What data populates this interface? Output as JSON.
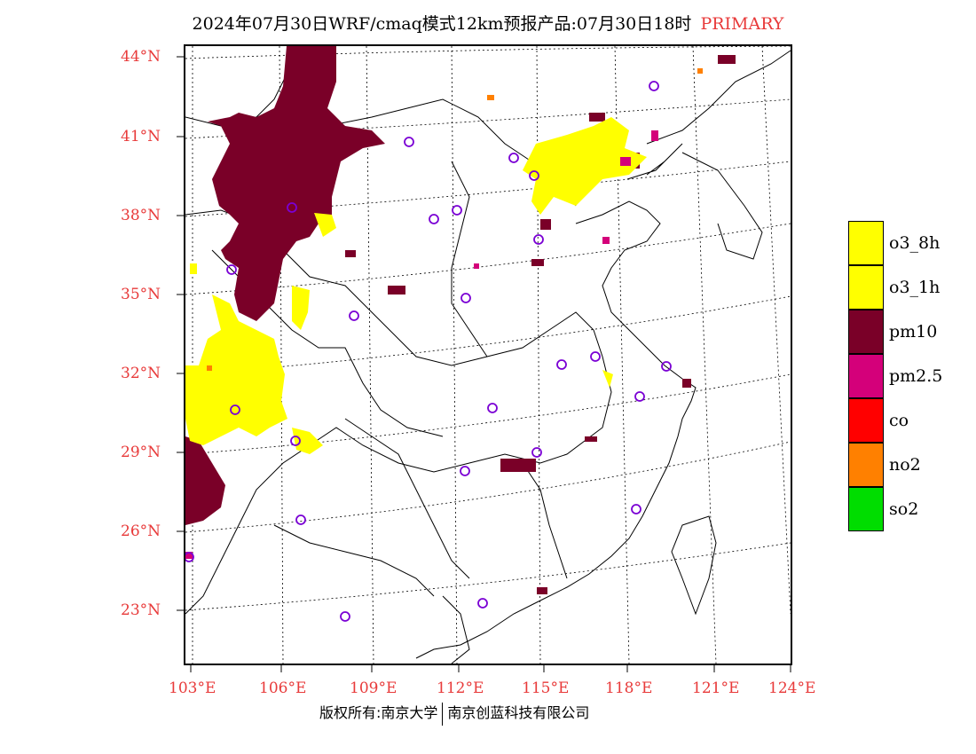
{
  "title": "2024年07月30日WRF/cmaq模式12km预报产品:07月30日18时",
  "title_tag": "PRIMARY",
  "lat_labels": [
    "44°N",
    "41°N",
    "38°N",
    "35°N",
    "32°N",
    "29°N",
    "26°N",
    "23°N"
  ],
  "lon_labels": [
    "103°E",
    "106°E",
    "109°E",
    "112°E",
    "115°E",
    "118°E",
    "121°E",
    "124°E"
  ],
  "legend": [
    {
      "label": "o3_8h",
      "color": "#ffff00"
    },
    {
      "label": "o3_1h",
      "color": "#ffff00"
    },
    {
      "label": "pm10",
      "color": "#7a0028"
    },
    {
      "label": "pm2.5",
      "color": "#d4007a"
    },
    {
      "label": "co",
      "color": "#ff0000"
    },
    {
      "label": "no2",
      "color": "#ff8000"
    },
    {
      "label": "so2",
      "color": "#00dd00"
    }
  ],
  "copyright_left": "版权所有:南京大学",
  "copyright_right": "南京创蓝科技有限公司"
}
